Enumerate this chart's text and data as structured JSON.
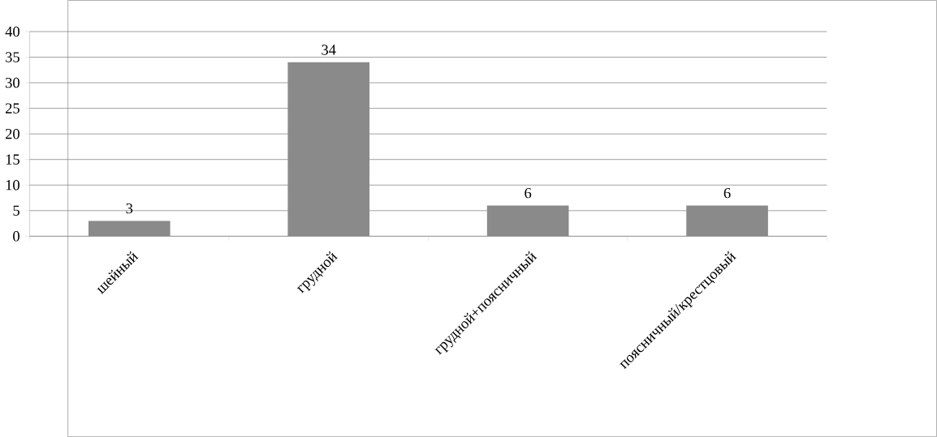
{
  "chart_data": {
    "type": "bar",
    "categories": [
      "шейный",
      "грудной",
      "грудной+поясничный",
      "поясничный/крестцовый"
    ],
    "values": [
      3,
      34,
      6,
      6
    ],
    "color": "#8a8a8a",
    "ylim": [
      0,
      40
    ],
    "yticks": [
      0,
      5,
      10,
      15,
      20,
      25,
      30,
      35,
      40
    ],
    "grid": "y",
    "data_labels": true
  }
}
